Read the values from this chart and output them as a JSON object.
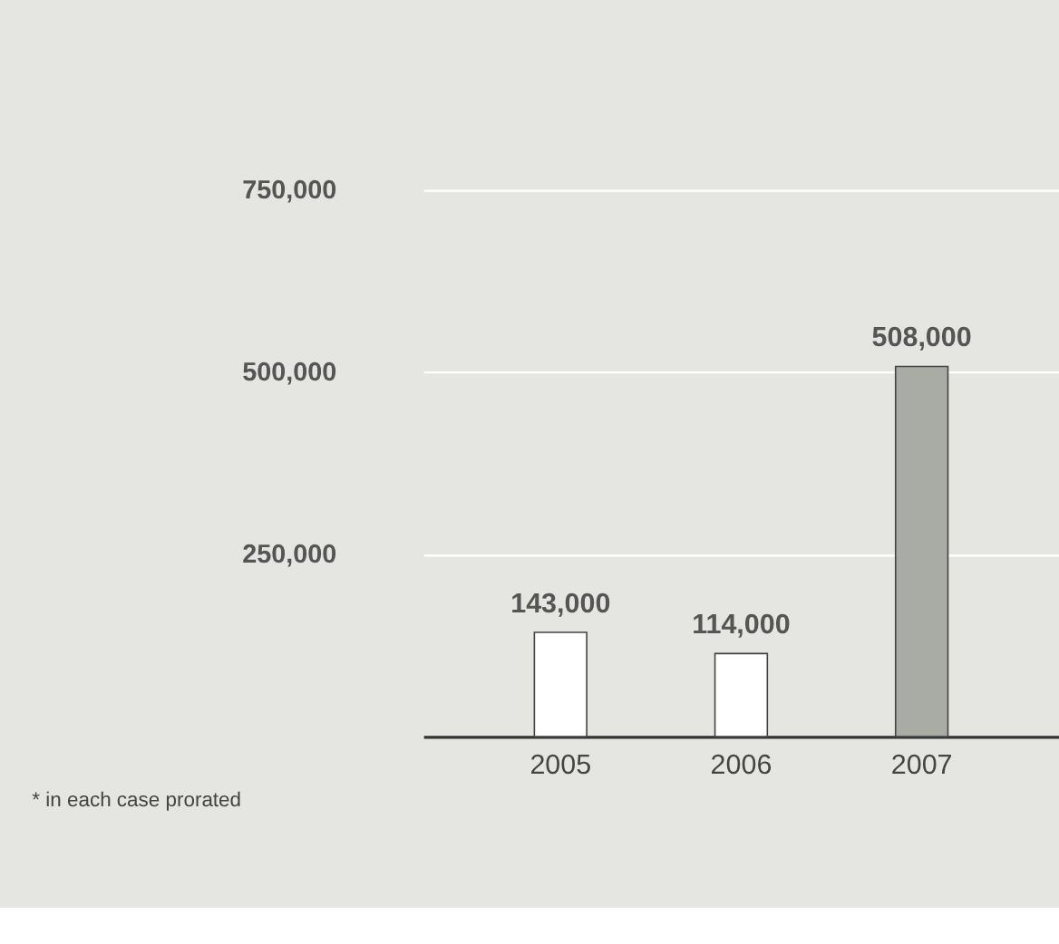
{
  "chart_data": {
    "type": "bar",
    "categories": [
      "2005",
      "2006",
      "2007"
    ],
    "values": [
      143000,
      114000,
      508000
    ],
    "value_labels": [
      "143,000",
      "114,000",
      "508,000"
    ],
    "colors": [
      "#ffffff",
      "#ffffff",
      "#a8aca4"
    ],
    "ylim": [
      0,
      750000
    ],
    "yticks": [
      {
        "value": 250000,
        "label": "250,000"
      },
      {
        "value": 500000,
        "label": "500,000"
      },
      {
        "value": 750000,
        "label": "750,000"
      }
    ],
    "grid": "y",
    "annotations": [
      "* in each case prorated"
    ]
  }
}
